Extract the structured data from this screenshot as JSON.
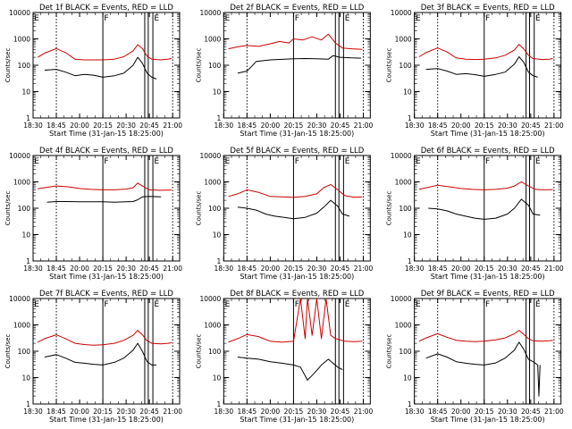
{
  "colors": {
    "events": "#000000",
    "lld": "#cc0000",
    "axes": "#000000"
  },
  "chart_data": [
    {
      "type": "line",
      "title": "Det 1f BLACK = Events, RED = LLD",
      "xlabel": "Start Time (31-Jan-15 18:25:00)",
      "ylabel": "Counts/sec",
      "scale_y": "log",
      "ylim": [
        1,
        10000
      ],
      "xticks": [
        "18:30",
        "18:45",
        "20:00",
        "20:15",
        "20:30",
        "20:45",
        "21:00"
      ],
      "yticks": [
        "1",
        "10",
        "100",
        "1000",
        "10000"
      ],
      "annotations": [
        "E",
        "F",
        "E"
      ],
      "dotted_lines": [
        1,
        6
      ],
      "solid_lines": [
        3,
        4.8,
        4.95,
        5.15
      ],
      "series": [
        {
          "color": "#cc0000",
          "x": [
            0.2,
            0.5,
            1,
            1.4,
            1.8,
            2.2,
            2.6,
            3,
            3.5,
            3.9,
            4.3,
            4.5,
            4.7,
            4.9,
            5.1,
            5.5,
            5.8,
            5.95
          ],
          "y": [
            200,
            290,
            430,
            300,
            170,
            160,
            160,
            160,
            170,
            210,
            350,
            600,
            430,
            220,
            170,
            160,
            170,
            180
          ]
        },
        {
          "color": "#000000",
          "x": [
            0.5,
            1,
            1.4,
            1.8,
            2.2,
            2.6,
            3,
            3.5,
            3.9,
            4.3,
            4.5,
            4.7,
            4.9,
            5.1,
            5.3
          ],
          "y": [
            65,
            70,
            55,
            40,
            45,
            42,
            35,
            40,
            50,
            100,
            200,
            120,
            50,
            35,
            30
          ]
        }
      ]
    },
    {
      "type": "line",
      "title": "Det 2f BLACK = Events, RED = LLD",
      "xlabel": "Start Time (31-Jan-15 18:25:00)",
      "ylabel": "Counts/sec",
      "scale_y": "log",
      "ylim": [
        1,
        10000
      ],
      "xticks": [
        "18:30",
        "18:45",
        "20:00",
        "20:15",
        "20:30",
        "20:45",
        "21:00"
      ],
      "yticks": [
        "1",
        "10",
        "100",
        "1000",
        "10000"
      ],
      "annotations": [
        "E",
        "F",
        "E"
      ],
      "dotted_lines": [
        1,
        6
      ],
      "solid_lines": [
        3,
        4.8,
        4.95,
        5.15
      ],
      "series": [
        {
          "color": "#cc0000",
          "x": [
            0.2,
            0.6,
            1,
            1.5,
            2,
            2.4,
            2.8,
            3,
            3.4,
            3.8,
            4.2,
            4.5,
            4.8,
            5.1,
            5.5,
            5.95
          ],
          "y": [
            420,
            500,
            560,
            520,
            650,
            800,
            700,
            1000,
            900,
            1200,
            900,
            1500,
            700,
            450,
            420,
            400
          ]
        },
        {
          "color": "#000000",
          "x": [
            0.6,
            1,
            1.2,
            1.4,
            2,
            2.6,
            3,
            3.5,
            4,
            4.5,
            4.7,
            5,
            5.5,
            5.9
          ],
          "y": [
            50,
            60,
            90,
            140,
            160,
            170,
            175,
            180,
            175,
            170,
            230,
            200,
            190,
            185
          ]
        }
      ]
    },
    {
      "type": "line",
      "title": "Det 3f BLACK = Events, RED = LLD",
      "xlabel": "Start Time (31-Jan-15 18:25:00)",
      "ylabel": "Counts/sec",
      "scale_y": "log",
      "ylim": [
        1,
        10000
      ],
      "xticks": [
        "18:30",
        "18:45",
        "20:00",
        "20:15",
        "20:30",
        "20:45",
        "21:00"
      ],
      "yticks": [
        "1",
        "10",
        "100",
        "1000",
        "10000"
      ],
      "annotations": [
        "E",
        "F",
        "E"
      ],
      "dotted_lines": [
        1,
        6
      ],
      "solid_lines": [
        3,
        4.8,
        4.95,
        5.15
      ],
      "series": [
        {
          "color": "#cc0000",
          "x": [
            0.2,
            0.5,
            1,
            1.4,
            1.8,
            2.2,
            2.6,
            3,
            3.5,
            3.9,
            4.3,
            4.5,
            4.7,
            4.9,
            5.1,
            5.5,
            5.8,
            5.95
          ],
          "y": [
            210,
            300,
            450,
            320,
            190,
            170,
            165,
            170,
            190,
            240,
            380,
            620,
            420,
            240,
            180,
            165,
            170,
            180
          ]
        },
        {
          "color": "#000000",
          "x": [
            0.5,
            1,
            1.4,
            1.8,
            2.2,
            2.6,
            3,
            3.5,
            3.9,
            4.3,
            4.5,
            4.7,
            4.9,
            5.1,
            5.3
          ],
          "y": [
            70,
            75,
            60,
            45,
            48,
            44,
            38,
            45,
            55,
            110,
            210,
            130,
            55,
            40,
            35
          ]
        }
      ]
    },
    {
      "type": "line",
      "title": "Det 4f BLACK = Events, RED = LLD",
      "xlabel": "Start Time (31-Jan-15 18:25:00)",
      "ylabel": "Counts/sec",
      "scale_y": "log",
      "ylim": [
        1,
        10000
      ],
      "xticks": [
        "18:30",
        "18:45",
        "20:00",
        "20:15",
        "20:30",
        "20:45",
        "21:00"
      ],
      "yticks": [
        "1",
        "10",
        "100",
        "1000",
        "10000"
      ],
      "annotations": [
        "E",
        "F",
        "E"
      ],
      "dotted_lines": [
        1,
        6
      ],
      "solid_lines": [
        3,
        4.8,
        4.95,
        5.15
      ],
      "series": [
        {
          "color": "#cc0000",
          "x": [
            0.2,
            0.6,
            1,
            1.5,
            2,
            2.5,
            3,
            3.5,
            4,
            4.3,
            4.5,
            4.7,
            5,
            5.5,
            5.95
          ],
          "y": [
            550,
            620,
            700,
            650,
            560,
            520,
            500,
            500,
            530,
            600,
            900,
            700,
            500,
            480,
            490
          ]
        },
        {
          "color": "#000000",
          "x": [
            0.6,
            1,
            1.5,
            2,
            2.5,
            3,
            3.5,
            4,
            4.3,
            4.5,
            4.7,
            5,
            5.5
          ],
          "y": [
            170,
            180,
            180,
            175,
            175,
            175,
            170,
            175,
            180,
            210,
            270,
            280,
            270
          ]
        }
      ]
    },
    {
      "type": "line",
      "title": "Det 5f BLACK = Events, RED = LLD",
      "xlabel": "Start Time (31-Jan-15 18:25:00)",
      "ylabel": "Counts/sec",
      "scale_y": "log",
      "ylim": [
        1,
        10000
      ],
      "xticks": [
        "18:30",
        "18:45",
        "20:00",
        "20:15",
        "20:30",
        "20:45",
        "21:00"
      ],
      "yticks": [
        "1",
        "10",
        "100",
        "1000",
        "10000"
      ],
      "annotations": [
        "E",
        "F",
        "E"
      ],
      "dotted_lines": [
        1,
        6
      ],
      "solid_lines": [
        3,
        4.8,
        4.95,
        5.15
      ],
      "series": [
        {
          "color": "#cc0000",
          "x": [
            0.2,
            0.6,
            1,
            1.5,
            2,
            2.5,
            3,
            3.5,
            4,
            4.3,
            4.6,
            4.9,
            5.2,
            5.6,
            5.95
          ],
          "y": [
            280,
            350,
            500,
            400,
            280,
            270,
            260,
            280,
            350,
            600,
            800,
            500,
            300,
            260,
            270
          ]
        },
        {
          "color": "#000000",
          "x": [
            0.6,
            1,
            1.4,
            1.8,
            2.2,
            2.6,
            3,
            3.5,
            4,
            4.3,
            4.6,
            4.9,
            5.1,
            5.4
          ],
          "y": [
            110,
            100,
            85,
            60,
            50,
            45,
            40,
            45,
            65,
            110,
            200,
            120,
            60,
            50
          ]
        }
      ]
    },
    {
      "type": "line",
      "title": "Det 6f BLACK = Events, RED = LLD",
      "xlabel": "Start Time (31-Jan-15 18:25:00)",
      "ylabel": "Counts/sec",
      "scale_y": "log",
      "ylim": [
        1,
        10000
      ],
      "xticks": [
        "18:30",
        "18:45",
        "20:00",
        "20:15",
        "20:30",
        "20:45",
        "21:00"
      ],
      "yticks": [
        "1",
        "10",
        "100",
        "1000",
        "10000"
      ],
      "annotations": [
        "E",
        "F",
        "E"
      ],
      "dotted_lines": [
        1,
        6
      ],
      "solid_lines": [
        3,
        4.8,
        4.95,
        5.15
      ],
      "series": [
        {
          "color": "#cc0000",
          "x": [
            0.2,
            0.6,
            1,
            1.5,
            2,
            2.5,
            3,
            3.5,
            4,
            4.3,
            4.6,
            4.9,
            5.2,
            5.6,
            5.95
          ],
          "y": [
            520,
            620,
            750,
            650,
            560,
            520,
            500,
            520,
            580,
            700,
            1000,
            700,
            520,
            500,
            510
          ]
        },
        {
          "color": "#000000",
          "x": [
            0.6,
            1,
            1.4,
            1.8,
            2.2,
            2.6,
            3,
            3.5,
            4,
            4.3,
            4.6,
            4.9,
            5.1,
            5.4
          ],
          "y": [
            100,
            95,
            80,
            60,
            50,
            42,
            38,
            42,
            60,
            100,
            220,
            130,
            60,
            55
          ]
        }
      ]
    },
    {
      "type": "line",
      "title": "Det 7f BLACK = Events, RED = LLD",
      "xlabel": "Start Time (31-Jan-15 18:25:00)",
      "ylabel": "Counts/sec",
      "scale_y": "log",
      "ylim": [
        1,
        10000
      ],
      "xticks": [
        "18:30",
        "18:45",
        "20:00",
        "20:15",
        "20:30",
        "20:45",
        "21:00"
      ],
      "yticks": [
        "1",
        "10",
        "100",
        "1000",
        "10000"
      ],
      "annotations": [
        "E",
        "F",
        "E"
      ],
      "dotted_lines": [
        1,
        6
      ],
      "solid_lines": [
        3,
        4.8,
        4.95,
        5.15
      ],
      "series": [
        {
          "color": "#cc0000",
          "x": [
            0.2,
            0.5,
            1,
            1.4,
            1.8,
            2.2,
            2.6,
            3,
            3.5,
            3.9,
            4.3,
            4.5,
            4.7,
            4.9,
            5.1,
            5.5,
            5.8,
            5.95
          ],
          "y": [
            220,
            300,
            420,
            300,
            200,
            180,
            170,
            175,
            200,
            260,
            400,
            620,
            420,
            250,
            200,
            190,
            200,
            210
          ]
        },
        {
          "color": "#000000",
          "x": [
            0.5,
            1,
            1.4,
            1.8,
            2.2,
            2.6,
            3,
            3.5,
            3.9,
            4.3,
            4.5,
            4.7,
            4.9,
            5.1,
            5.3
          ],
          "y": [
            60,
            75,
            55,
            38,
            35,
            32,
            30,
            38,
            55,
            110,
            200,
            100,
            40,
            30,
            30
          ]
        }
      ]
    },
    {
      "type": "line",
      "title": "Det 8f BLACK = Events, RED = LLD",
      "xlabel": "Start Time (31-Jan-15 18:25:00)",
      "ylabel": "Counts/sec",
      "scale_y": "log",
      "ylim": [
        1,
        10000
      ],
      "xticks": [
        "18:30",
        "18:45",
        "20:00",
        "20:15",
        "20:30",
        "20:45",
        "21:00"
      ],
      "yticks": [
        "1",
        "10",
        "100",
        "1000",
        "10000"
      ],
      "annotations": [
        "E",
        "F",
        "E"
      ],
      "dotted_lines": [
        1,
        6
      ],
      "solid_lines": [
        3,
        4.8,
        4.95,
        5.15
      ],
      "series": [
        {
          "color": "#cc0000",
          "x": [
            0.2,
            0.6,
            1,
            1.5,
            2,
            2.5,
            3,
            3.3,
            3.5,
            3.6,
            3.8,
            4.0,
            4.2,
            4.4,
            4.6,
            4.8,
            5.2,
            5.6,
            5.95
          ],
          "y": [
            220,
            300,
            430,
            360,
            240,
            220,
            240,
            10000,
            300,
            10000,
            400,
            10000,
            300,
            10000,
            400,
            300,
            240,
            230,
            240
          ]
        },
        {
          "color": "#000000",
          "x": [
            0.6,
            1,
            1.5,
            2,
            2.5,
            3,
            3.3,
            3.6,
            3.9,
            4.2,
            4.5,
            4.7,
            4.9,
            5.1
          ],
          "y": [
            60,
            55,
            50,
            40,
            35,
            30,
            25,
            8,
            15,
            30,
            50,
            35,
            25,
            20
          ]
        }
      ]
    },
    {
      "type": "line",
      "title": "Det 9f BLACK = Events, RED = LLD",
      "xlabel": "Start Time (31-Jan-15 18:25:00)",
      "ylabel": "Counts/sec",
      "scale_y": "log",
      "ylim": [
        1,
        10000
      ],
      "xticks": [
        "18:30",
        "18:45",
        "20:00",
        "20:15",
        "20:30",
        "20:45",
        "21:00"
      ],
      "yticks": [
        "1",
        "10",
        "100",
        "1000",
        "10000"
      ],
      "annotations": [
        "E",
        "F",
        "E"
      ],
      "dotted_lines": [
        1,
        6
      ],
      "solid_lines": [
        3,
        4.8,
        4.95,
        5.15
      ],
      "series": [
        {
          "color": "#cc0000",
          "x": [
            0.2,
            0.5,
            1,
            1.4,
            1.8,
            2.2,
            2.6,
            3,
            3.5,
            3.9,
            4.3,
            4.5,
            4.7,
            4.9,
            5.1,
            5.5,
            5.8,
            5.95
          ],
          "y": [
            240,
            320,
            460,
            340,
            260,
            240,
            230,
            240,
            270,
            320,
            460,
            620,
            440,
            300,
            250,
            240,
            250,
            260
          ]
        },
        {
          "color": "#000000",
          "x": [
            0.5,
            1,
            1.4,
            1.8,
            2.2,
            2.6,
            3,
            3.5,
            3.9,
            4.3,
            4.5,
            4.7,
            4.9,
            5.1,
            5.3,
            5.35,
            5.4
          ],
          "y": [
            55,
            80,
            60,
            40,
            35,
            32,
            30,
            36,
            55,
            110,
            220,
            120,
            50,
            40,
            30,
            2,
            30
          ]
        }
      ]
    }
  ]
}
